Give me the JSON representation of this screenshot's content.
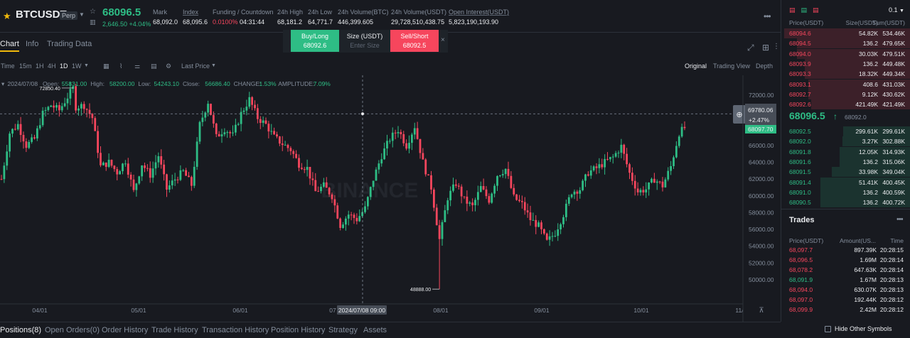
{
  "header": {
    "symbol": "BTCUSDT",
    "contract_type": "Perp",
    "last_price": "68096.5",
    "change": "2,646.50 +4.04%",
    "stats": [
      {
        "label": "Mark",
        "value": "68,092.0",
        "underline": false
      },
      {
        "label": "Index",
        "value": "68,095.6",
        "underline": true
      },
      {
        "label": "Funding / Countdown",
        "value": "",
        "underline": false
      },
      {
        "label": "24h High",
        "value": "68,181.2",
        "underline": false
      },
      {
        "label": "24h Low",
        "value": "64,771.7",
        "underline": false
      },
      {
        "label": "24h Volume(BTC)",
        "value": "446,399.605",
        "underline": false
      },
      {
        "label": "24h Volume(USDT)",
        "value": "29,728,510,438.75",
        "underline": false
      },
      {
        "label": "Open Interest(USDT)",
        "value": "5,823,190,193.90",
        "underline": true
      }
    ],
    "funding_rate": "0.0100%",
    "countdown": "04:31:44"
  },
  "tabs": [
    "Chart",
    "Info",
    "Trading Data"
  ],
  "trade_panel": {
    "buy_label": "Buy/Long",
    "buy_price": "68092.6",
    "size_label": "Size (USDT)",
    "size_placeholder": "Enter Size",
    "sell_label": "Sell/Short",
    "sell_price": "68092.5",
    "close": "×"
  },
  "toolbar": {
    "intervals": [
      "Time",
      "15m",
      "1H",
      "4H",
      "1D",
      "1W"
    ],
    "selected_interval": "1D",
    "price_type": "Last Price",
    "views": [
      "Original",
      "Trading View",
      "Depth"
    ],
    "selected_view": "Original"
  },
  "chart_data": {
    "type": "candlestick",
    "symbol": "BTCUSDT",
    "interval": "1D",
    "ohlc_label": {
      "date": "2024/07/08",
      "open_label": "Open:",
      "open": "55831.00",
      "high_label": "High:",
      "high": "58200.00",
      "low_label": "Low:",
      "low": "54243.10",
      "close_label": "Close:",
      "close": "56686.40",
      "change_label": "CHANGE:",
      "change": "1.53%",
      "amplitude_label": "AMPLITUDE:",
      "amplitude": "7.09%"
    },
    "ylim": [
      48500,
      73500
    ],
    "y_ticks": [
      "72000.00",
      "70000.00",
      "68000.00",
      "66000.00",
      "64000.00",
      "62000.00",
      "60000.00",
      "58000.00",
      "56000.00",
      "54000.00",
      "52000.00",
      "50000.00"
    ],
    "x_ticks": [
      "04/01",
      "05/01",
      "06/01",
      "07",
      "08/01",
      "09/01",
      "10/01",
      "11/"
    ],
    "crosshair_date": "2024/07/08 09:00",
    "crosshair_price": "69780.06",
    "crosshair_change": "+2.47%",
    "last_price_label": "68097.70",
    "high_marker": "72850.40",
    "low_marker": "48888.00",
    "watermark": "BINANCE",
    "candle_path": [
      [
        0,
        62000
      ],
      [
        3,
        67500
      ],
      [
        6,
        68500
      ],
      [
        9,
        66000
      ],
      [
        12,
        66800
      ],
      [
        15,
        69800
      ],
      [
        18,
        70800
      ],
      [
        21,
        70200
      ],
      [
        24,
        71800
      ],
      [
        26,
        72850
      ],
      [
        27,
        70600
      ],
      [
        30,
        70800
      ],
      [
        33,
        69300
      ],
      [
        36,
        63500
      ],
      [
        39,
        64000
      ],
      [
        42,
        62800
      ],
      [
        45,
        64200
      ],
      [
        48,
        60500
      ],
      [
        51,
        63800
      ],
      [
        54,
        62500
      ],
      [
        57,
        64800
      ],
      [
        60,
        60800
      ],
      [
        63,
        62000
      ],
      [
        66,
        62900
      ],
      [
        69,
        61300
      ],
      [
        72,
        68500
      ],
      [
        75,
        71200
      ],
      [
        78,
        67000
      ],
      [
        81,
        68000
      ],
      [
        84,
        67200
      ],
      [
        87,
        69800
      ],
      [
        90,
        71500
      ],
      [
        93,
        69300
      ],
      [
        96,
        68500
      ],
      [
        99,
        67000
      ],
      [
        102,
        66200
      ],
      [
        105,
        65500
      ],
      [
        108,
        63800
      ],
      [
        111,
        63300
      ],
      [
        114,
        60500
      ],
      [
        117,
        61200
      ],
      [
        120,
        60000
      ],
      [
        123,
        56500
      ],
      [
        126,
        57800
      ],
      [
        129,
        57200
      ],
      [
        132,
        58500
      ],
      [
        135,
        62000
      ],
      [
        138,
        64800
      ],
      [
        141,
        66800
      ],
      [
        144,
        67900
      ],
      [
        147,
        66000
      ],
      [
        150,
        68300
      ],
      [
        153,
        64000
      ],
      [
        156,
        61000
      ],
      [
        159,
        54800
      ],
      [
        162,
        59800
      ],
      [
        165,
        61500
      ],
      [
        168,
        59500
      ],
      [
        171,
        58700
      ],
      [
        174,
        61000
      ],
      [
        177,
        59500
      ],
      [
        180,
        62500
      ],
      [
        183,
        63200
      ],
      [
        186,
        59800
      ],
      [
        189,
        59000
      ],
      [
        192,
        57200
      ],
      [
        195,
        56400
      ],
      [
        198,
        54500
      ],
      [
        201,
        55600
      ],
      [
        204,
        57800
      ],
      [
        207,
        60500
      ],
      [
        210,
        60800
      ],
      [
        213,
        62800
      ],
      [
        216,
        63300
      ],
      [
        219,
        64000
      ],
      [
        222,
        64600
      ],
      [
        225,
        65900
      ],
      [
        228,
        62700
      ],
      [
        231,
        60500
      ],
      [
        234,
        60800
      ],
      [
        237,
        62000
      ],
      [
        240,
        61200
      ],
      [
        243,
        63500
      ],
      [
        246,
        67500
      ],
      [
        248,
        68100
      ]
    ]
  },
  "orderbook": {
    "precision": "0.1",
    "headers": [
      "Price(USDT)",
      "Size(USDT)",
      "Sum(USDT)"
    ],
    "asks": [
      {
        "price": "68094.6",
        "size": "54.82K",
        "sum": "534.46K",
        "depth": 0.98
      },
      {
        "price": "68094.5",
        "size": "136.2",
        "sum": "479.65K",
        "depth": 0.88
      },
      {
        "price": "68094.0",
        "size": "30.03K",
        "sum": "479.51K",
        "depth": 0.88
      },
      {
        "price": "68093.9",
        "size": "136.2",
        "sum": "449.48K",
        "depth": 0.82
      },
      {
        "price": "68093.3",
        "size": "18.32K",
        "sum": "449.34K",
        "depth": 0.82
      },
      {
        "price": "68093.1",
        "size": "408.6",
        "sum": "431.03K",
        "depth": 0.79
      },
      {
        "price": "68092.7",
        "size": "9.12K",
        "sum": "430.62K",
        "depth": 0.79
      },
      {
        "price": "68092.6",
        "size": "421.49K",
        "sum": "421.49K",
        "depth": 0.77
      }
    ],
    "mid_price": "68096.5",
    "mid_arrow": "↑",
    "mark_price": "68092.0",
    "bids": [
      {
        "price": "68092.5",
        "size": "299.61K",
        "sum": "299.61K",
        "depth": 0.52
      },
      {
        "price": "68092.0",
        "size": "3.27K",
        "sum": "302.88K",
        "depth": 0.53
      },
      {
        "price": "68091.8",
        "size": "12.05K",
        "sum": "314.93K",
        "depth": 0.55
      },
      {
        "price": "68091.6",
        "size": "136.2",
        "sum": "315.06K",
        "depth": 0.55
      },
      {
        "price": "68091.5",
        "size": "33.98K",
        "sum": "349.04K",
        "depth": 0.61
      },
      {
        "price": "68091.4",
        "size": "51.41K",
        "sum": "400.45K",
        "depth": 0.7
      },
      {
        "price": "68091.0",
        "size": "136.2",
        "sum": "400.59K",
        "depth": 0.7
      },
      {
        "price": "68090.5",
        "size": "136.2",
        "sum": "400.72K",
        "depth": 0.7
      }
    ]
  },
  "trades": {
    "title": "Trades",
    "headers": [
      "Price(USDT)",
      "Amount(US...",
      "Time"
    ],
    "rows": [
      {
        "price": "68,097.7",
        "amount": "897.39K",
        "time": "20:28:15",
        "side": "sell"
      },
      {
        "price": "68,096.5",
        "amount": "1.69M",
        "time": "20:28:14",
        "side": "sell"
      },
      {
        "price": "68,078.2",
        "amount": "647.63K",
        "time": "20:28:14",
        "side": "sell"
      },
      {
        "price": "68,091.9",
        "amount": "1.67M",
        "time": "20:28:13",
        "side": "buy"
      },
      {
        "price": "68,094.0",
        "amount": "630.07K",
        "time": "20:28:13",
        "side": "sell"
      },
      {
        "price": "68,097.0",
        "amount": "192.44K",
        "time": "20:28:12",
        "side": "sell"
      },
      {
        "price": "68,099.9",
        "amount": "2.42M",
        "time": "20:28:12",
        "side": "sell"
      }
    ]
  },
  "positions_tabs": [
    "Positions(8)",
    "Open Orders(0)",
    "Order History",
    "Trade History",
    "Transaction History",
    "Position History",
    "Strategy",
    "Assets"
  ],
  "hide_other_symbols": "Hide Other Symbols",
  "colors": {
    "up": "#2ebd85",
    "down": "#f6465d",
    "accent": "#f0b90b",
    "bg": "#181a20"
  }
}
